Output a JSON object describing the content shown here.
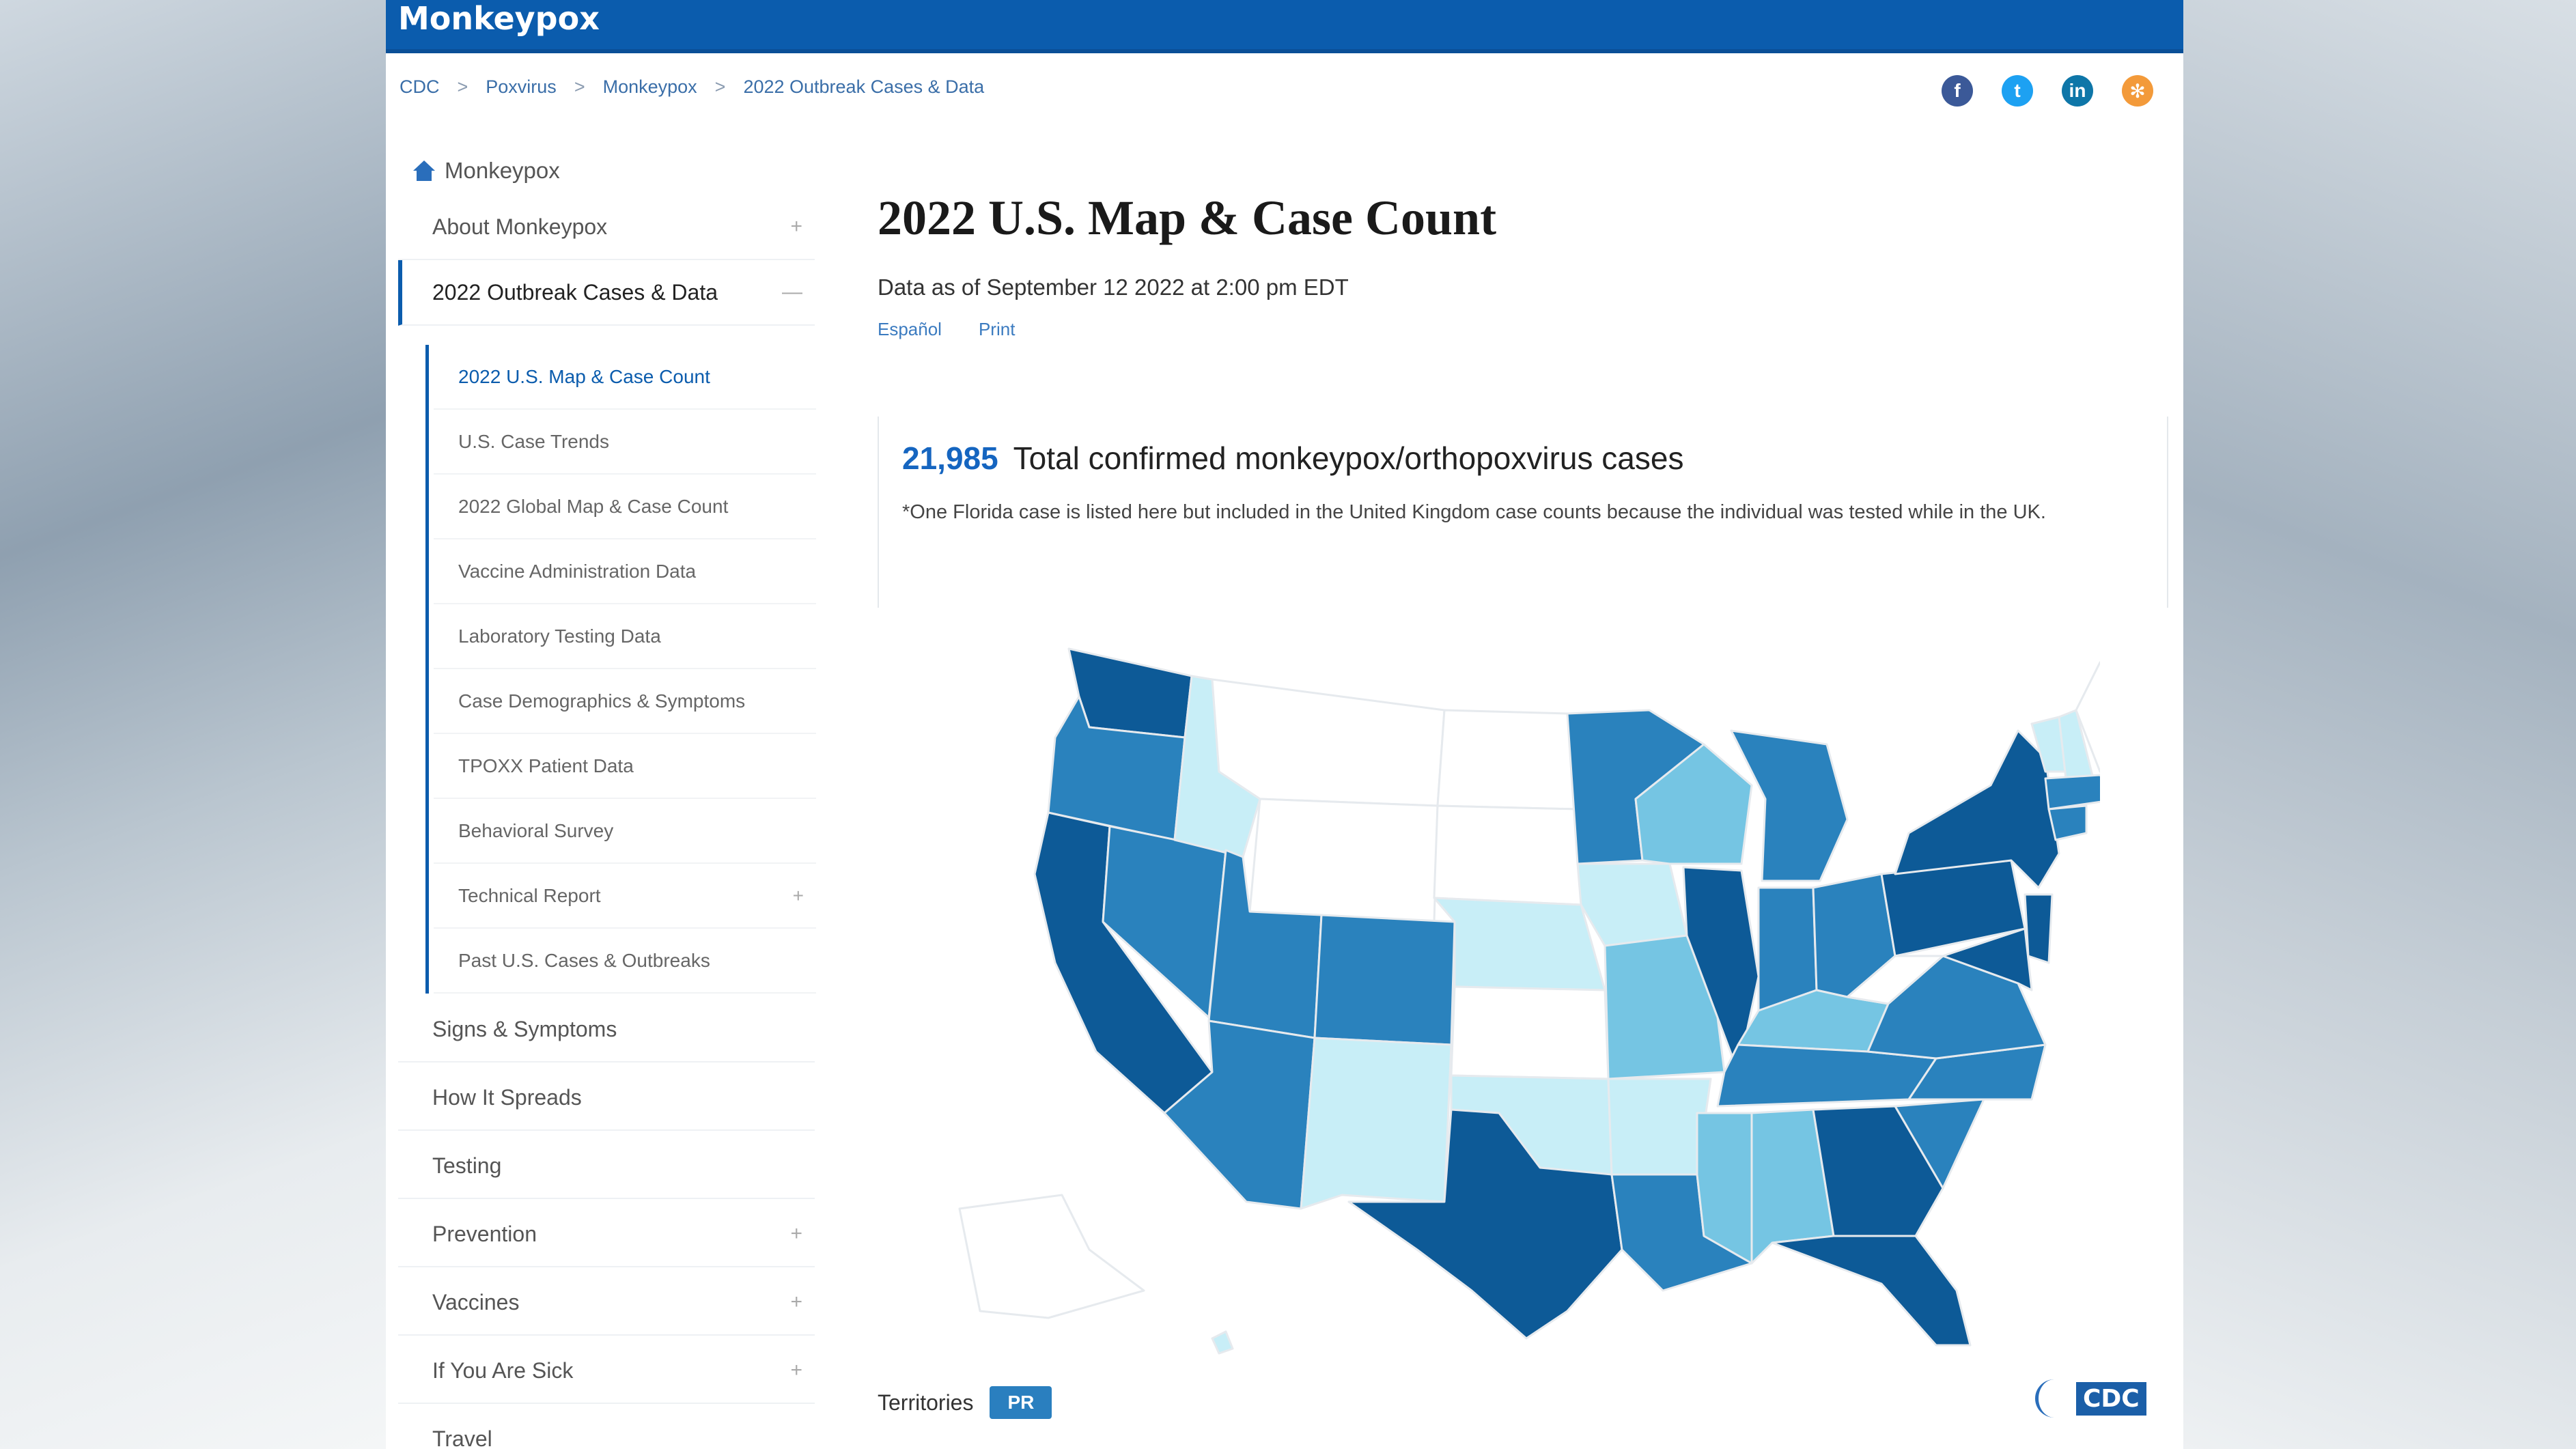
{
  "header": {
    "site_title": "Monkeypox"
  },
  "breadcrumb": [
    "CDC",
    "Poxvirus",
    "Monkeypox",
    "2022 Outbreak Cases & Data"
  ],
  "social": [
    {
      "name": "facebook-icon",
      "glyph": "f"
    },
    {
      "name": "twitter-icon",
      "glyph": "t"
    },
    {
      "name": "linkedin-icon",
      "glyph": "in"
    },
    {
      "name": "syndicate-icon",
      "glyph": "✻"
    }
  ],
  "sidebar": {
    "home_label": "Monkeypox",
    "items": [
      {
        "label": "About Monkeypox",
        "toggle": "+"
      },
      {
        "label": "2022 Outbreak Cases & Data",
        "toggle": "—"
      },
      {
        "label": "Signs & Symptoms",
        "toggle": ""
      },
      {
        "label": "How It Spreads",
        "toggle": ""
      },
      {
        "label": "Testing",
        "toggle": ""
      },
      {
        "label": "Prevention",
        "toggle": "+"
      },
      {
        "label": "Vaccines",
        "toggle": "+"
      },
      {
        "label": "If You Are Sick",
        "toggle": "+"
      },
      {
        "label": "Travel",
        "toggle": ""
      }
    ],
    "sub_items": [
      {
        "label": "2022 U.S. Map & Case Count",
        "toggle": ""
      },
      {
        "label": "U.S. Case Trends",
        "toggle": ""
      },
      {
        "label": "2022 Global Map & Case Count",
        "toggle": ""
      },
      {
        "label": "Vaccine Administration Data",
        "toggle": ""
      },
      {
        "label": "Laboratory Testing Data",
        "toggle": ""
      },
      {
        "label": "Case Demographics & Symptoms",
        "toggle": ""
      },
      {
        "label": "TPOXX Patient Data",
        "toggle": ""
      },
      {
        "label": "Behavioral Survey",
        "toggle": ""
      },
      {
        "label": "Technical Report",
        "toggle": "+"
      },
      {
        "label": "Past U.S. Cases & Outbreaks",
        "toggle": ""
      }
    ]
  },
  "main": {
    "title": "2022 U.S. Map & Case Count",
    "date_line": "Data as of September 12 2022 at 2:00 pm EDT",
    "links": [
      "Español",
      "Print"
    ],
    "case_count": "21,985",
    "case_label": "Total confirmed monkeypox/orthopoxvirus cases",
    "case_note": "*One Florida case is listed here but included in the United Kingdom case counts because the individual was tested while in the UK.",
    "territories_label": "Territories",
    "territory_button": "PR",
    "cdc_logo": "CDC"
  },
  "map_colors": {
    "darkest": "#0d5a97",
    "dark": "#2a82bd",
    "medium": "#75c5e3",
    "light": "#c8eef7",
    "none": "#ffffff",
    "border": "#d9dee3"
  }
}
